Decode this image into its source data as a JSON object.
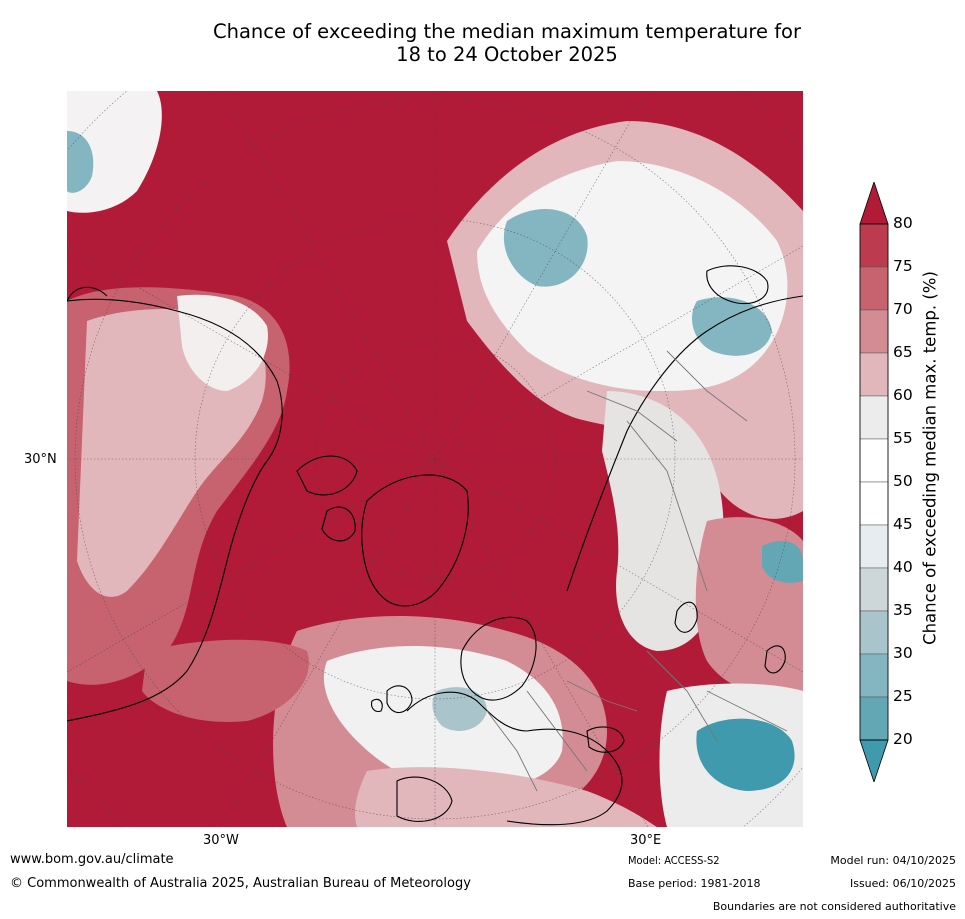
{
  "title": {
    "line1": "Chance of exceeding the median maximum temperature for",
    "line2": "18 to 24 October 2025"
  },
  "map": {
    "lat_label": "30°N",
    "lon_labels": [
      "30°W",
      "30°E"
    ]
  },
  "legend": {
    "label": "Chance of exceeding median max. temp. (%)",
    "ticks": [
      "80",
      "75",
      "70",
      "65",
      "60",
      "55",
      "50",
      "45",
      "40",
      "35",
      "30",
      "25",
      "20"
    ],
    "bands": [
      {
        "range": ">80",
        "color": "#b21b38"
      },
      {
        "range": "75-80",
        "color": "#bd3b4f"
      },
      {
        "range": "70-75",
        "color": "#c7636f"
      },
      {
        "range": "65-70",
        "color": "#d48c94"
      },
      {
        "range": "60-65",
        "color": "#e2b7bb"
      },
      {
        "range": "55-60",
        "color": "#ececec"
      },
      {
        "range": "50-55",
        "color": "#ffffff"
      },
      {
        "range": "45-50",
        "color": "#ffffff"
      },
      {
        "range": "40-45",
        "color": "#e6ecef"
      },
      {
        "range": "35-40",
        "color": "#cdd6d9"
      },
      {
        "range": "30-35",
        "color": "#aac4cb"
      },
      {
        "range": "25-30",
        "color": "#84b6c1"
      },
      {
        "range": "20-25",
        "color": "#63a7b5"
      },
      {
        "range": "<20",
        "color": "#3f9aad"
      }
    ]
  },
  "footer": {
    "url": "www.bom.gov.au/climate",
    "copyright": "© Commonwealth of Australia 2025, Australian Bureau of Meteorology",
    "model": "Model: ACCESS-S2",
    "base_period": "Base period: 1981-2018",
    "model_run": "Model run: 04/10/2025",
    "issued": "Issued: 06/10/2025",
    "disclaimer": "Boundaries are not considered authoritative"
  }
}
